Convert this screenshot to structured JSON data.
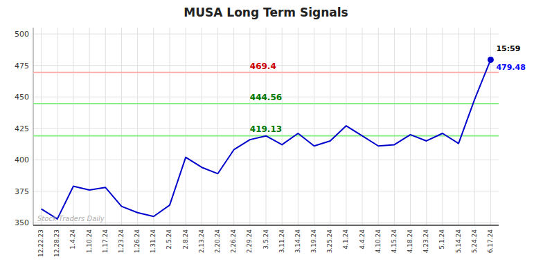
{
  "chart_data": {
    "type": "line",
    "title": "MUSA Long Term Signals",
    "categories": [
      "12.22.23",
      "12.28.23",
      "1.4.24",
      "1.10.24",
      "1.17.24",
      "1.23.24",
      "1.26.24",
      "1.31.24",
      "2.5.24",
      "2.8.24",
      "2.13.24",
      "2.20.24",
      "2.26.24",
      "2.29.24",
      "3.5.24",
      "3.11.24",
      "3.14.24",
      "3.19.24",
      "3.25.24",
      "4.1.24",
      "4.4.24",
      "4.10.24",
      "4.15.24",
      "4.18.24",
      "4.23.24",
      "5.1.24",
      "5.14.24",
      "5.24.24",
      "6.17.24"
    ],
    "values": [
      361,
      353,
      379,
      376,
      378,
      363,
      358,
      355,
      364,
      402,
      394,
      389,
      408,
      416,
      419,
      412,
      421,
      411,
      415,
      427,
      419,
      411,
      412,
      420,
      415,
      421,
      413,
      448,
      479.48
    ],
    "color": "#0000cc",
    "ylim": [
      348,
      505
    ],
    "yticks": [
      350,
      375,
      400,
      425,
      450,
      475,
      500
    ],
    "grid": true,
    "reference_lines": [
      {
        "value": 469.4,
        "label": "469.4",
        "color": "#ffaaaa",
        "label_color": "#cc0000"
      },
      {
        "value": 419.13,
        "label": "419.13",
        "color": "#88ee88",
        "label_color": "#007700"
      },
      {
        "value": 444.56,
        "label": "444.56",
        "color": "#88ee88",
        "label_color": "#007700"
      }
    ],
    "highlight": {
      "category": "6.17.24",
      "value": 479.48,
      "time_label": "15:59",
      "time_color": "#000000",
      "value_color": "#0000ff"
    },
    "watermark": "Stock Traders Daily",
    "watermark_color": "#b0b0b0"
  }
}
